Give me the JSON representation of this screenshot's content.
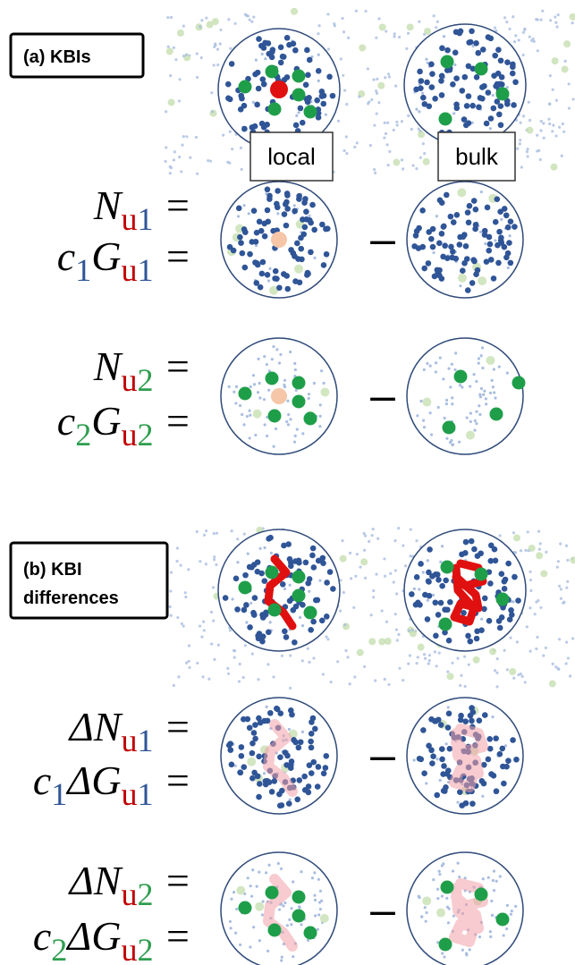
{
  "panel_a": {
    "label": "(a) KBIs",
    "local_label": "local",
    "bulk_label": "bulk",
    "rows": [
      {
        "lines": [
          [
            {
              "text": "N"
            },
            {
              "text": "u",
              "sub": true,
              "color": "#c00000"
            },
            {
              "text": "1",
              "sub": true,
              "color": "#2f5597"
            },
            {
              "text": " ="
            }
          ],
          [
            {
              "text": "c"
            },
            {
              "text": "1",
              "sub": true,
              "color": "#2f5597"
            },
            {
              "text": "G"
            },
            {
              "text": "u",
              "sub": true,
              "color": "#c00000"
            },
            {
              "text": "1",
              "sub": true,
              "color": "#2f5597"
            },
            {
              "text": " ="
            }
          ]
        ],
        "minus": "–"
      },
      {
        "lines": [
          [
            {
              "text": "N"
            },
            {
              "text": "u",
              "sub": true,
              "color": "#c00000"
            },
            {
              "text": "2",
              "sub": true,
              "color": "#2e9e4f"
            },
            {
              "text": " ="
            }
          ],
          [
            {
              "text": "c"
            },
            {
              "text": "2",
              "sub": true,
              "color": "#2e9e4f"
            },
            {
              "text": "G"
            },
            {
              "text": "u",
              "sub": true,
              "color": "#c00000"
            },
            {
              "text": "2",
              "sub": true,
              "color": "#2e9e4f"
            },
            {
              "text": " ="
            }
          ]
        ],
        "minus": "–"
      }
    ]
  },
  "panel_b": {
    "label_lines": [
      "(b) KBI",
      "differences"
    ],
    "rows": [
      {
        "lines": [
          [
            {
              "text": "ΔN"
            },
            {
              "text": "u",
              "sub": true,
              "color": "#c00000"
            },
            {
              "text": "1",
              "sub": true,
              "color": "#2f5597"
            },
            {
              "text": " ="
            }
          ],
          [
            {
              "text": "c"
            },
            {
              "text": "1",
              "sub": true,
              "color": "#2f5597"
            },
            {
              "text": "ΔG"
            },
            {
              "text": "u",
              "sub": true,
              "color": "#c00000"
            },
            {
              "text": "1",
              "sub": true,
              "color": "#2f5597"
            },
            {
              "text": " ="
            }
          ]
        ],
        "minus": "–"
      },
      {
        "lines": [
          [
            {
              "text": "ΔN"
            },
            {
              "text": "u",
              "sub": true,
              "color": "#c00000"
            },
            {
              "text": "2",
              "sub": true,
              "color": "#2e9e4f"
            },
            {
              "text": " ="
            }
          ],
          [
            {
              "text": "c"
            },
            {
              "text": "2",
              "sub": true,
              "color": "#2e9e4f"
            },
            {
              "text": "ΔG"
            },
            {
              "text": "u",
              "sub": true,
              "color": "#c00000"
            },
            {
              "text": "2",
              "sub": true,
              "color": "#2e9e4f"
            },
            {
              "text": " ="
            }
          ]
        ],
        "minus": "–"
      }
    ]
  }
}
